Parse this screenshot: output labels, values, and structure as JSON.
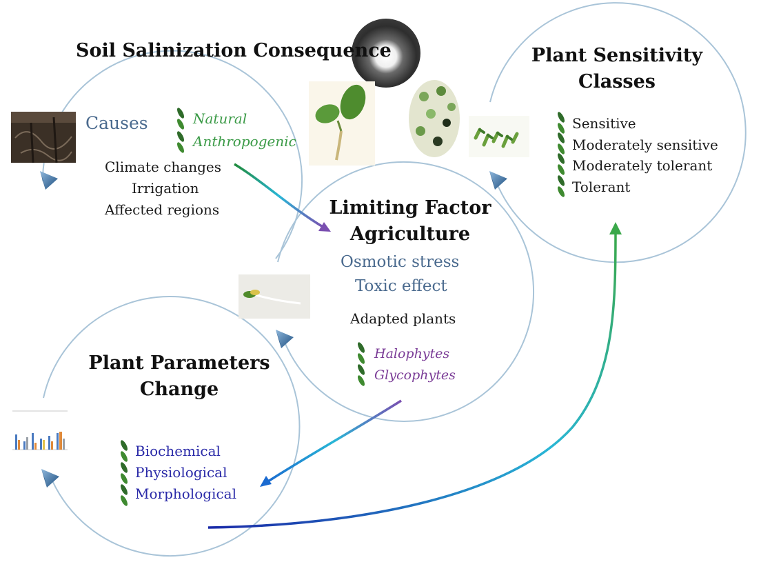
{
  "cycle": {
    "soil_salinization": {
      "title": "Soil Salinization Consequence",
      "causes_label": "Causes",
      "cause_types": [
        "Natural",
        "Anthropogenic"
      ],
      "factors": [
        "Climate changes",
        "Irrigation",
        "Affected regions"
      ]
    },
    "plant_sensitivity": {
      "title": "Plant Sensitivity Classes",
      "classes": [
        "Sensitive",
        "Moderately sensitive",
        "Moderately tolerant",
        "Tolerant"
      ]
    },
    "limiting_factor": {
      "title": "Limiting Factor Agriculture",
      "stresses": [
        "Osmotic stress",
        "Toxic effect"
      ],
      "adapted_label": "Adapted plants",
      "plant_types": [
        "Halophytes",
        "Glycophytes"
      ]
    },
    "plant_parameters": {
      "title": "Plant Parameters Change",
      "parameters": [
        "Biochemical",
        "Physiological",
        "Morphological"
      ]
    }
  },
  "colors": {
    "circle": "#a9c4d8",
    "arrowhead": "#3f6f9e",
    "leaf": "#2f6b2a",
    "causes_text": "#4a6a8e",
    "cause_types_text": "#3a9a46",
    "plant_types_text": "#7b3d97",
    "parameters_text": "#2a2aa8",
    "connector_start": "#1f8a3a",
    "connector_mid": "#29b6d6",
    "connector_end_purple": "#7a4fb0",
    "connector_end_blue": "#1a3aa8"
  },
  "icons": [
    "leaf-bullet-icon",
    "cycle-arrowhead-icon",
    "soil-photo",
    "seedling-photo",
    "bar-chart-thumbnail"
  ]
}
